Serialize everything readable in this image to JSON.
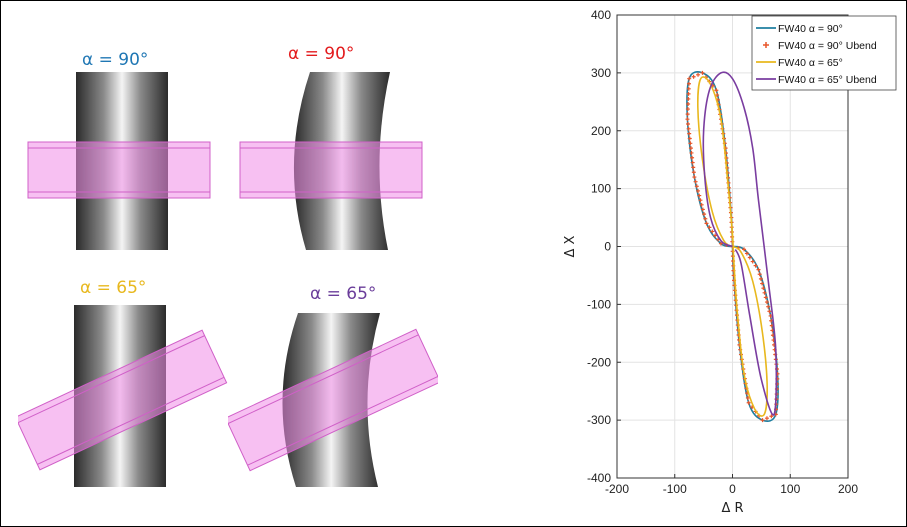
{
  "figure": {
    "panels": [
      {
        "label": "α = 90°",
        "color": "#1f77b4"
      },
      {
        "label": "α = 90°",
        "color": "#e31a1c"
      },
      {
        "label": "α = 65°",
        "color": "#e8b81e"
      },
      {
        "label": "α = 65°",
        "color": "#6a3d9a"
      }
    ]
  },
  "chart_data": {
    "type": "line",
    "xlabel": "Δ R",
    "ylabel": "Δ X",
    "xlim": [
      -200,
      200
    ],
    "ylim": [
      -400,
      400
    ],
    "xticks": [
      "-200",
      "-100",
      "0",
      "100",
      "200"
    ],
    "yticks": [
      "400",
      "300",
      "200",
      "100",
      "0",
      "-100",
      "-200",
      "-300",
      "-400"
    ],
    "grid": true,
    "legend_position": "top-right",
    "series": [
      {
        "name": "FW40 α = 90°",
        "color": "#1f7fa0",
        "style": "line",
        "x": [
          0,
          -20,
          -45,
          -66,
          -78,
          -75,
          -52,
          -28,
          -12,
          -2,
          0,
          2,
          12,
          28,
          52,
          75,
          78,
          66,
          45,
          20,
          0
        ],
        "y": [
          0,
          5,
          40,
          120,
          220,
          290,
          300,
          270,
          170,
          50,
          0,
          -50,
          -170,
          -270,
          -300,
          -290,
          -220,
          -120,
          -40,
          -5,
          0
        ]
      },
      {
        "name": "FW40 α = 90° Ubend",
        "color": "#e8562a",
        "style": "markers",
        "x": [
          0,
          -20,
          -45,
          -66,
          -78,
          -75,
          -52,
          -28,
          -12,
          -2,
          0,
          2,
          12,
          28,
          52,
          75,
          78,
          66,
          45,
          20,
          0
        ],
        "y": [
          0,
          5,
          40,
          120,
          220,
          290,
          300,
          270,
          170,
          50,
          0,
          -50,
          -170,
          -270,
          -300,
          -290,
          -220,
          -120,
          -40,
          -5,
          0
        ]
      },
      {
        "name": "FW40 α = 65°",
        "color": "#e8b81e",
        "style": "line",
        "x": [
          0,
          -15,
          -35,
          -52,
          -60,
          -55,
          -38,
          -20,
          -8,
          0,
          2,
          8,
          20,
          38,
          55,
          60,
          52,
          35,
          15,
          0
        ],
        "y": [
          0,
          10,
          60,
          150,
          240,
          290,
          280,
          220,
          110,
          20,
          -20,
          -110,
          -220,
          -280,
          -290,
          -240,
          -150,
          -60,
          -10,
          0
        ]
      },
      {
        "name": "FW40 α = 65° Ubend",
        "color": "#7a3da0",
        "style": "line",
        "x": [
          0,
          -20,
          -38,
          -48,
          -50,
          -40,
          -20,
          0,
          20,
          35,
          45,
          62,
          75,
          72,
          50,
          30,
          15,
          5
        ],
        "y": [
          0,
          10,
          50,
          120,
          200,
          270,
          300,
          290,
          240,
          170,
          80,
          -60,
          -180,
          -290,
          -230,
          -120,
          -30,
          -5
        ]
      }
    ]
  }
}
